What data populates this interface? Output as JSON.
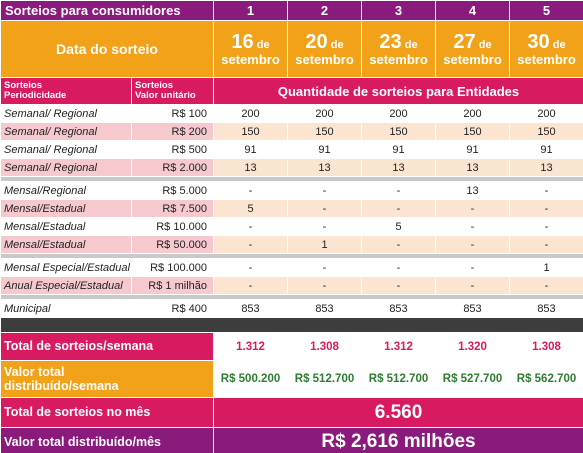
{
  "header": {
    "title": "Sorteios para consumidores",
    "columns": [
      "1",
      "2",
      "3",
      "4",
      "5"
    ]
  },
  "dates": {
    "label": "Data do sorteio",
    "items": [
      {
        "day": "16",
        "de": "de",
        "month": "setembro"
      },
      {
        "day": "20",
        "de": "de",
        "month": "setembro"
      },
      {
        "day": "23",
        "de": "de",
        "month": "setembro"
      },
      {
        "day": "27",
        "de": "de",
        "month": "setembro"
      },
      {
        "day": "30",
        "de": "de",
        "month": "setembro"
      }
    ]
  },
  "subheader": {
    "col1_line1": "Sorteios",
    "col1_line2": "Periodicidade",
    "col2_line1": "Sorteios",
    "col2_line2": "Valor unitário",
    "span_label": "Quantidade de sorteios para Entidades"
  },
  "groups": [
    [
      {
        "period": "Semanal/ Regional",
        "value": "R$ 100",
        "cells": [
          "200",
          "200",
          "200",
          "200",
          "200"
        ]
      },
      {
        "period": "Semanal/ Regional",
        "value": "R$ 200",
        "cells": [
          "150",
          "150",
          "150",
          "150",
          "150"
        ]
      },
      {
        "period": "Semanal/ Regional",
        "value": "R$ 500",
        "cells": [
          "91",
          "91",
          "91",
          "91",
          "91"
        ]
      },
      {
        "period": "Semanal/ Regional",
        "value": "R$ 2.000",
        "cells": [
          "13",
          "13",
          "13",
          "13",
          "13"
        ]
      }
    ],
    [
      {
        "period": "Mensal/Regional",
        "value": "R$ 5.000",
        "cells": [
          "-",
          "-",
          "-",
          "13",
          "-"
        ]
      },
      {
        "period": "Mensal/Estadual",
        "value": "R$ 7.500",
        "cells": [
          "5",
          "-",
          "-",
          "-",
          "-"
        ]
      },
      {
        "period": "Mensal/Estadual",
        "value": "R$ 10.000",
        "cells": [
          "-",
          "-",
          "5",
          "-",
          "-"
        ]
      },
      {
        "period": "Mensal/Estadual",
        "value": "R$ 50.000",
        "cells": [
          "-",
          "1",
          "-",
          "-",
          "-"
        ]
      }
    ],
    [
      {
        "period": "Mensal Especial/Estadual",
        "value": "R$ 100.000",
        "cells": [
          "-",
          "-",
          "-",
          "-",
          "1"
        ]
      },
      {
        "period": "Anual Especial/Estadual",
        "value": "R$ 1 milhão",
        "cells": [
          "-",
          "-",
          "-",
          "-",
          "-"
        ]
      }
    ],
    [
      {
        "period": "Municipal",
        "value": "R$ 400",
        "cells": [
          "853",
          "853",
          "853",
          "853",
          "853"
        ]
      }
    ]
  ],
  "totals": {
    "per_week_label": "Total de sorteios/semana",
    "per_week": [
      "1.312",
      "1.308",
      "1.312",
      "1.320",
      "1.308"
    ],
    "value_week_label_1": "Valor total",
    "value_week_label_2": "distribuído/semana",
    "value_week": [
      "R$ 500.200",
      "R$ 512.700",
      "R$ 512.700",
      "R$ 527.700",
      "R$ 562.700"
    ],
    "month_label": "Total de sorteios no mês",
    "month_value": "6.560",
    "value_month_label": "Valor total distribuído/mês",
    "value_month": "R$ 2,616 milhões"
  },
  "colors": {
    "purple": "#8a1a7c",
    "orange": "#f2a218",
    "pink": "#d81b60",
    "peach": "#fbe5d0",
    "rose": "#f6c9cf",
    "green": "#2e7d32"
  }
}
